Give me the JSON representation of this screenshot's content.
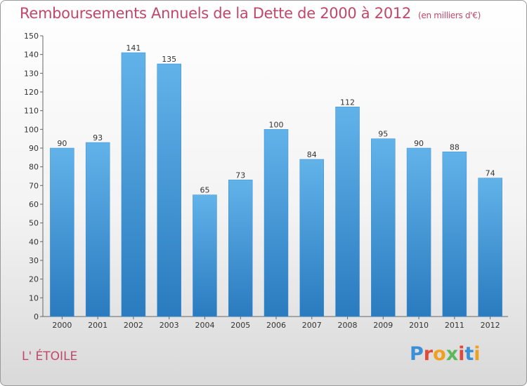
{
  "header": {
    "title": "Remboursements Annuels de la Dette de 2000 à 2012",
    "subtitle": "(en milliers d'€)"
  },
  "footer": {
    "commune": "L' ÉTOILE",
    "logo": "Proxiti"
  },
  "colors": {
    "bar_light": "#62b2ea",
    "bar_dark": "#2a7bbf",
    "title": "#c0476a"
  },
  "chart_data": {
    "type": "bar",
    "title": "Remboursements Annuels de la Dette de 2000 à 2012",
    "subtitle": "(en milliers d'€)",
    "categories": [
      "2000",
      "2001",
      "2002",
      "2003",
      "2004",
      "2005",
      "2006",
      "2007",
      "2008",
      "2009",
      "2010",
      "2011",
      "2012"
    ],
    "values": [
      90,
      93,
      141,
      135,
      65,
      73,
      100,
      84,
      112,
      95,
      90,
      88,
      74
    ],
    "ylim": [
      0,
      150
    ],
    "yticks": [
      0,
      10,
      20,
      30,
      40,
      50,
      60,
      70,
      80,
      90,
      100,
      110,
      120,
      130,
      140,
      150
    ],
    "grid": false,
    "legend": "none"
  }
}
